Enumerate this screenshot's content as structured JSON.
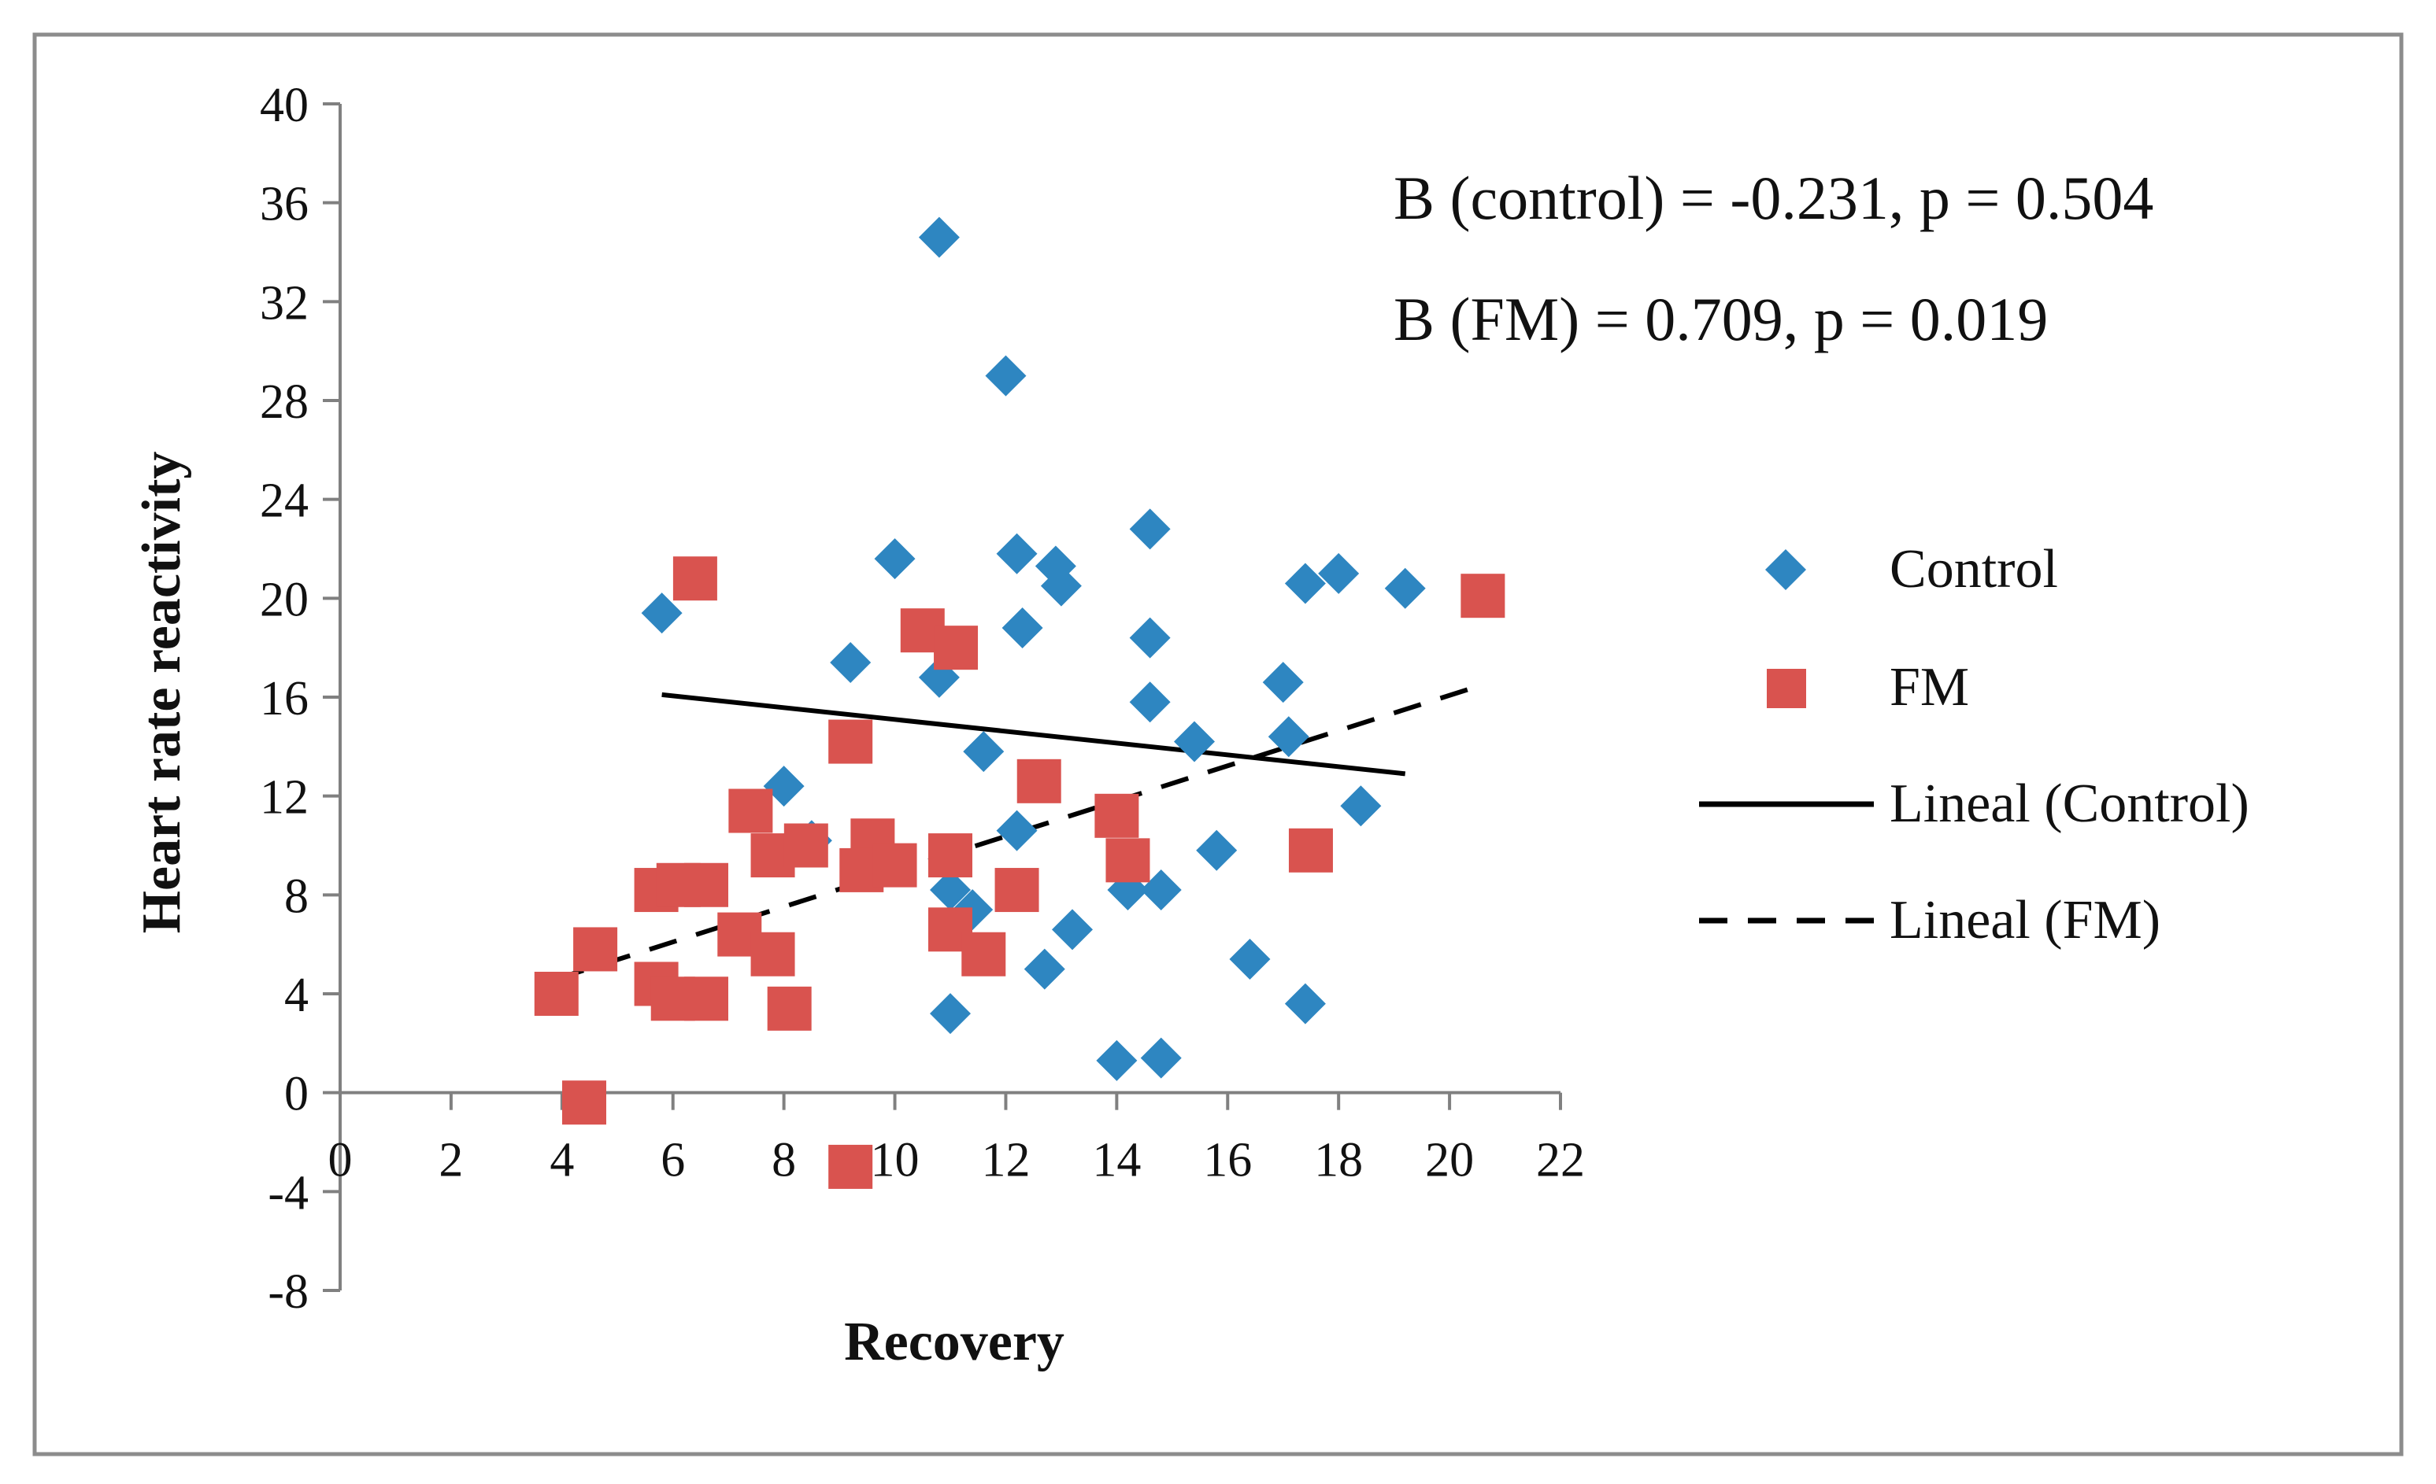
{
  "chart_data": {
    "type": "scatter",
    "title": "",
    "xlabel": "Recovery",
    "ylabel": "Heart rate reactivity",
    "xlim": [
      0,
      22
    ],
    "ylim": [
      -8,
      40
    ],
    "x_ticks": [
      "0",
      "2",
      "4",
      "6",
      "8",
      "10",
      "12",
      "14",
      "16",
      "18",
      "20",
      "22"
    ],
    "y_ticks": [
      "40",
      "36",
      "32",
      "28",
      "24",
      "20",
      "16",
      "12",
      "8",
      "4",
      "0",
      "-4",
      "-8"
    ],
    "grid": false,
    "legend_position": "right",
    "annotations": [
      "B (control) = -0.231, p = 0.504",
      "B (FM) = 0.709, p = 0.019"
    ],
    "series": [
      {
        "name": "Control",
        "marker": "diamond",
        "color": "#2e86c1",
        "points": [
          [
            5.8,
            19.4
          ],
          [
            10.8,
            34.6
          ],
          [
            12.0,
            29.0
          ],
          [
            10.0,
            21.6
          ],
          [
            12.2,
            21.8
          ],
          [
            12.9,
            21.3
          ],
          [
            13.0,
            20.5
          ],
          [
            14.6,
            22.8
          ],
          [
            12.3,
            18.8
          ],
          [
            9.2,
            17.4
          ],
          [
            10.8,
            16.8
          ],
          [
            14.6,
            18.4
          ],
          [
            14.6,
            15.8
          ],
          [
            15.4,
            14.2
          ],
          [
            17.0,
            16.6
          ],
          [
            17.1,
            14.4
          ],
          [
            17.4,
            20.6
          ],
          [
            18.0,
            21.0
          ],
          [
            19.2,
            20.4
          ],
          [
            11.6,
            13.8
          ],
          [
            8.0,
            12.4
          ],
          [
            8.5,
            10.2
          ],
          [
            12.2,
            10.6
          ],
          [
            11.0,
            8.2
          ],
          [
            11.4,
            7.4
          ],
          [
            14.2,
            8.2
          ],
          [
            14.8,
            8.2
          ],
          [
            15.8,
            9.8
          ],
          [
            18.4,
            11.6
          ],
          [
            12.7,
            5.0
          ],
          [
            13.2,
            6.6
          ],
          [
            16.4,
            5.4
          ],
          [
            11.0,
            3.2
          ],
          [
            17.4,
            3.6
          ],
          [
            14.0,
            1.3
          ],
          [
            14.8,
            1.4
          ]
        ]
      },
      {
        "name": "FM",
        "marker": "square",
        "color": "#d9534f",
        "points": [
          [
            6.4,
            20.8
          ],
          [
            10.5,
            18.7
          ],
          [
            11.1,
            18.0
          ],
          [
            9.2,
            14.2
          ],
          [
            12.6,
            12.6
          ],
          [
            7.4,
            11.4
          ],
          [
            7.8,
            9.6
          ],
          [
            8.4,
            10.0
          ],
          [
            9.6,
            10.2
          ],
          [
            9.4,
            9.0
          ],
          [
            10.0,
            9.2
          ],
          [
            11.0,
            9.6
          ],
          [
            12.2,
            8.2
          ],
          [
            14.0,
            11.2
          ],
          [
            14.2,
            9.4
          ],
          [
            17.5,
            9.8
          ],
          [
            20.6,
            20.1
          ],
          [
            5.7,
            8.2
          ],
          [
            6.1,
            8.4
          ],
          [
            6.6,
            8.4
          ],
          [
            7.2,
            6.4
          ],
          [
            7.8,
            5.6
          ],
          [
            11.0,
            6.6
          ],
          [
            11.6,
            5.6
          ],
          [
            4.6,
            5.8
          ],
          [
            3.9,
            4.0
          ],
          [
            5.7,
            4.4
          ],
          [
            6.0,
            3.8
          ],
          [
            6.6,
            3.8
          ],
          [
            8.1,
            3.4
          ],
          [
            4.4,
            -0.4
          ],
          [
            9.2,
            -3.0
          ]
        ]
      }
    ],
    "trendlines": [
      {
        "name": "Lineal (Control)",
        "style": "solid",
        "x": [
          5.8,
          19.2
        ],
        "y": [
          16.1,
          12.9
        ]
      },
      {
        "name": "Lineal (FM)",
        "style": "dashed",
        "x": [
          3.9,
          20.6
        ],
        "y": [
          4.6,
          16.5
        ]
      }
    ]
  }
}
